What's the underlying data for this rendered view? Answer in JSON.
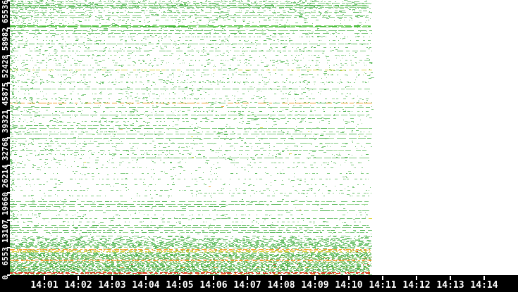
{
  "chart_data": {
    "type": "scatter",
    "title": "",
    "xlabel": "",
    "ylabel": "",
    "x_axis": {
      "start_time": "14:00",
      "tick_labels": [
        "14:01",
        "14:02",
        "14:03",
        "14:04",
        "14:05",
        "14:06",
        "14:07",
        "14:08",
        "14:09",
        "14:10",
        "14:11",
        "14:12",
        "14:13",
        "14:14"
      ],
      "minutes_per_tick": 1,
      "grid": false
    },
    "y_axis": {
      "min": 0,
      "max": 65536,
      "tick_labels": [
        "0",
        "6553",
        "13107",
        "19660",
        "26214",
        "32768",
        "39321",
        "45875",
        "52428",
        "58982",
        "65536"
      ],
      "tick_values": [
        0,
        6553,
        13107,
        19660,
        26214,
        32768,
        39321,
        45875,
        52428,
        58982,
        65536
      ]
    },
    "data_start_minute": 0,
    "data_end_minute": 10.7,
    "legend": null,
    "colors": {
      "background": "#ffffff",
      "axis_bg": "#000000",
      "axis_text": "#ffffff",
      "green": "#7cc87c",
      "green_light": "#9ad890",
      "green_med": "#58b858",
      "green_dark": "#3da03d",
      "bright1": "#49bb3b",
      "bright2": "#6fcf5f",
      "bright3": "#8fdc7f",
      "olive": "#9cbe4e",
      "yellow": "#dfd93f",
      "orange": "#f2a12f",
      "orange_red": "#ef7b22",
      "red": "#e03113"
    },
    "port_lines": [
      [
        65200,
        "green",
        "dotted",
        0,
        1
      ],
      [
        64860,
        "green",
        "solid",
        0,
        1
      ],
      [
        64440,
        "green",
        "mottled2",
        0,
        1
      ],
      [
        63860,
        "green",
        "solid",
        0,
        1
      ],
      [
        63440,
        "green",
        "dotted",
        0,
        1
      ],
      [
        63020,
        "green",
        "sparse",
        0,
        1
      ],
      [
        62600,
        "green",
        "dashed",
        0,
        1
      ],
      [
        61840,
        "green",
        "solid",
        0,
        1
      ],
      [
        61500,
        "green",
        "dashed",
        0,
        1
      ],
      [
        60830,
        "green",
        "sparse",
        0,
        1
      ],
      [
        59400,
        "green",
        "thick_bright",
        0,
        1
      ],
      [
        58390,
        "green",
        "solid",
        0,
        1
      ],
      [
        57640,
        "green",
        "dashed",
        0,
        1
      ],
      [
        56720,
        "green",
        "dotted",
        0,
        1
      ],
      [
        55960,
        "green",
        "sparse",
        0,
        1
      ],
      [
        55120,
        "green",
        "solid",
        0,
        1
      ],
      [
        54280,
        "green",
        "sparse",
        0,
        1
      ],
      [
        53440,
        "green",
        "dashed",
        0,
        1
      ],
      [
        52430,
        "green",
        "dotted",
        0,
        1
      ],
      [
        51255,
        "green",
        "sparse",
        0,
        1
      ],
      [
        50080,
        "green",
        "sparse",
        0,
        1
      ],
      [
        48820,
        "yellow",
        "yellow_green",
        0,
        1
      ],
      [
        47730,
        "green",
        "sparse",
        0,
        1
      ],
      [
        46045,
        "green",
        "speckle2",
        0,
        1
      ],
      [
        44365,
        "green",
        "solid",
        0,
        1
      ],
      [
        43190,
        "green",
        "sparse",
        0,
        1
      ],
      [
        42015,
        "green",
        "dotted",
        0,
        1
      ],
      [
        41090,
        "orange",
        "orange_green",
        0,
        1
      ],
      [
        40000,
        "green",
        "solid",
        0,
        1
      ],
      [
        38990,
        "green",
        "dotted",
        0,
        1
      ],
      [
        38150,
        "green",
        "solid",
        0,
        1
      ],
      [
        37310,
        "green",
        "dashed",
        0.25,
        0.9
      ],
      [
        36640,
        "green",
        "sparse",
        0,
        1
      ],
      [
        35630,
        "green",
        "dashed",
        0,
        0.45
      ],
      [
        34960,
        "green",
        "solid",
        0,
        1
      ],
      [
        34120,
        "green",
        "dotted",
        0,
        1
      ],
      [
        33530,
        "green",
        "solid",
        0,
        1
      ],
      [
        32520,
        "green",
        "solid",
        0,
        1
      ],
      [
        31430,
        "green",
        "dashed",
        0,
        1
      ],
      [
        30590,
        "green",
        "sparse",
        0,
        1
      ],
      [
        29750,
        "green",
        "dashed",
        0,
        1
      ],
      [
        28740,
        "green",
        "sparse",
        0,
        1
      ],
      [
        27900,
        "green",
        "solid",
        0.3,
        1
      ],
      [
        26725,
        "green",
        "sparse",
        0,
        1
      ],
      [
        25550,
        "green",
        "sparse",
        0,
        1
      ],
      [
        24200,
        "green",
        "sparse",
        0,
        1
      ],
      [
        22860,
        "green",
        "dotted",
        0,
        1
      ],
      [
        21515,
        "green",
        "sparse",
        0,
        1
      ],
      [
        20170,
        "green",
        "dotted",
        0,
        1
      ],
      [
        19500,
        "green",
        "dotted",
        0.5,
        1
      ],
      [
        18825,
        "green",
        "sparse",
        0,
        1
      ],
      [
        17480,
        "green",
        "dashed",
        0,
        1
      ],
      [
        16805,
        "green",
        "solid",
        0,
        1
      ],
      [
        16300,
        "green",
        "dashed",
        0,
        0.6
      ],
      [
        15290,
        "green",
        "solid",
        0,
        1
      ],
      [
        14285,
        "green",
        "sparse",
        0,
        1
      ],
      [
        13445,
        "green",
        "dashed",
        0,
        1
      ],
      [
        12605,
        "green",
        "sparse",
        0,
        1
      ],
      [
        11765,
        "green",
        "dashed",
        0,
        1
      ],
      [
        11260,
        "green",
        "solid",
        0,
        1
      ],
      [
        10585,
        "green",
        "dashed",
        0,
        1
      ],
      [
        10080,
        "green",
        "dashed",
        0,
        1
      ]
    ],
    "low_port_band_rows": [
      [
        9242,
        "green",
        0.18
      ],
      [
        9074,
        "green",
        0.3
      ],
      [
        8906,
        "green",
        0.15
      ],
      [
        8738,
        "green",
        0.35
      ],
      [
        8570,
        "green",
        0.2
      ],
      [
        8402,
        "green",
        0.4
      ],
      [
        8234,
        "green",
        0.25
      ],
      [
        8066,
        "green",
        0.45
      ],
      [
        7898,
        "green",
        0.3
      ],
      [
        7730,
        "green",
        0.5
      ],
      [
        7562,
        "green",
        0.35
      ],
      [
        7394,
        "green",
        0.65
      ],
      [
        7226,
        "green_med",
        0.75
      ],
      [
        7058,
        "green",
        0.8
      ],
      [
        6890,
        "green_med",
        0.7
      ],
      [
        6722,
        "green",
        0.55
      ],
      [
        6554,
        "green",
        0.45
      ],
      [
        6386,
        "green",
        0.25,
        "red"
      ],
      [
        6218,
        "green",
        0.3
      ],
      [
        6050,
        "orange",
        0.92
      ],
      [
        5882,
        "orange",
        0.95
      ],
      [
        5714,
        "green",
        0.3
      ],
      [
        5546,
        "yellow",
        0.85
      ],
      [
        5378,
        "olive",
        0.75
      ],
      [
        5210,
        "green",
        0.4
      ],
      [
        5042,
        "green",
        0.55
      ],
      [
        4874,
        "green_med",
        0.85
      ],
      [
        4706,
        "green",
        0.9
      ],
      [
        4537,
        "green_dark",
        0.8
      ],
      [
        4369,
        "green",
        0.85
      ],
      [
        4201,
        "olive",
        0.7,
        "orange"
      ],
      [
        4033,
        "green",
        0.9
      ],
      [
        3865,
        "green_med",
        0.85
      ],
      [
        3697,
        "green",
        0.8
      ],
      [
        3529,
        "orange_red",
        0.9
      ],
      [
        3361,
        "orange",
        0.85
      ],
      [
        3193,
        "green",
        0.8
      ],
      [
        3025,
        "green_med",
        0.9
      ],
      [
        2857,
        "olive",
        0.75
      ],
      [
        2689,
        "green",
        0.85
      ],
      [
        2521,
        "green",
        0.8,
        "red"
      ],
      [
        2353,
        "green_med",
        0.9
      ],
      [
        2185,
        "green",
        0.85
      ],
      [
        2017,
        "green_dark",
        0.8
      ],
      [
        1849,
        "green",
        0.85
      ],
      [
        1681,
        "olive",
        0.7,
        "orange"
      ],
      [
        1513,
        "green_med",
        0.88
      ],
      [
        1345,
        "green",
        0.9
      ],
      [
        1176,
        "green_dark",
        0.82
      ],
      [
        1008,
        "green",
        0.88
      ],
      [
        840,
        "green",
        0.75,
        "orange"
      ],
      [
        672,
        "green_med",
        0.8
      ],
      [
        504,
        "red",
        0.92
      ],
      [
        336,
        "red",
        0.88
      ],
      [
        168,
        "green",
        0.55,
        "orange"
      ],
      [
        0,
        "green",
        0.45,
        "orange"
      ]
    ],
    "noise_zones": [
      {
        "p_hi": 65536,
        "p_lo": 63350,
        "density": 0.14
      },
      {
        "p_hi": 63350,
        "p_lo": 60160,
        "density": 0.07
      },
      {
        "p_hi": 60160,
        "p_lo": 43690,
        "density": 0.045
      },
      {
        "p_hi": 43690,
        "p_lo": 26040,
        "density": 0.035
      },
      {
        "p_hi": 26040,
        "p_lo": 9240,
        "density": 0.016
      }
    ],
    "flecks": [
      {
        "color": "yellow",
        "count": 9,
        "p_hi": 50000,
        "p_lo": 10000
      },
      {
        "color": "orange",
        "count": 6,
        "p_hi": 45000,
        "p_lo": 8000
      },
      {
        "color": "red",
        "count": 3,
        "p_hi": 7200,
        "p_lo": 5400
      }
    ]
  }
}
